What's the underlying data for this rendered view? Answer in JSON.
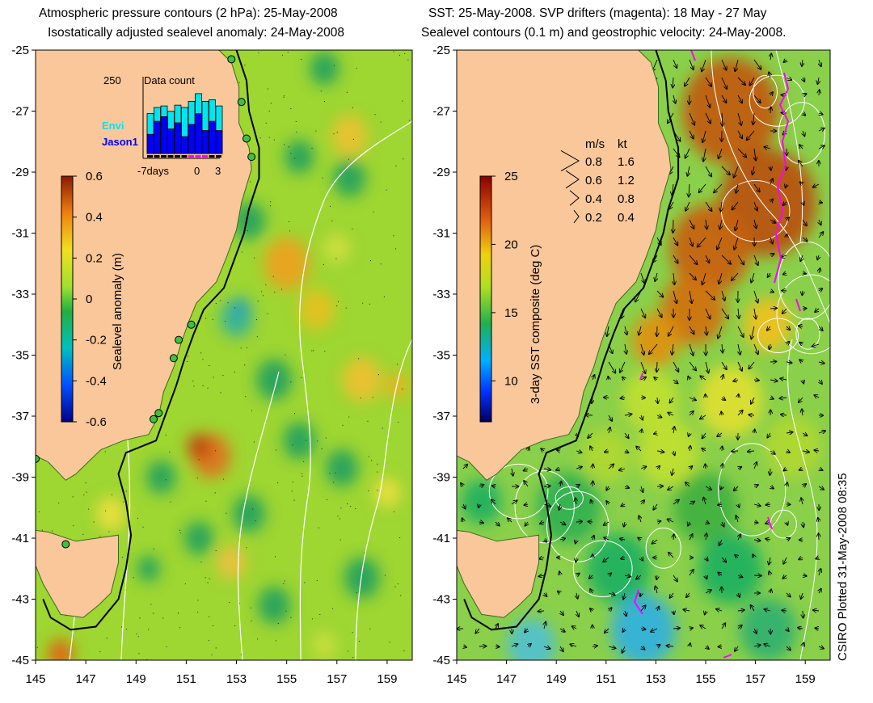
{
  "titles": {
    "left_line1": "Atmospheric pressure contours (2 hPa): 25-May-2008",
    "left_line2": "Isostatically adjusted sealevel anomaly: 24-May-2008",
    "right_line1": "SST: 25-May-2008. SVP drifters (magenta): 18 May - 27 May",
    "right_line2": "Sealevel contours (0.1 m) and geostrophic velocity: 24-May-2008."
  },
  "axes": {
    "lat_ticks": [
      "-25",
      "-27",
      "-29",
      "-31",
      "-33",
      "-35",
      "-37",
      "-39",
      "-41",
      "-43",
      "-45"
    ],
    "lon_ticks": [
      "145",
      "147",
      "149",
      "151",
      "153",
      "155",
      "157",
      "159"
    ],
    "lon_range": [
      145,
      160
    ],
    "lat_range": [
      -45,
      -25
    ]
  },
  "left_colorbar": {
    "label": "Sealevel anomaly (m)",
    "ticks": [
      "0.6",
      "0.4",
      "0.2",
      "0",
      "-0.2",
      "-0.4",
      "-0.6"
    ],
    "range": [
      -0.6,
      0.6
    ]
  },
  "right_colorbar": {
    "label": "3-day SST composite (deg C)",
    "ticks": [
      "25",
      "20",
      "15",
      "10"
    ],
    "range": [
      7,
      25
    ]
  },
  "data_count_inset": {
    "title": "Data count",
    "ymax_label": "250",
    "series": [
      "Envi",
      "Jason1"
    ],
    "series_colors": [
      "#00e5ee",
      "#0000ff"
    ],
    "x_labels": [
      "-7days",
      "0",
      "3"
    ],
    "envi_values": [
      0.52,
      0.6,
      0.62,
      0.55,
      0.63,
      0.6,
      0.68,
      0.78,
      0.68,
      0.7,
      0.62
    ],
    "jason_values": [
      0.25,
      0.42,
      0.48,
      0.32,
      0.4,
      0.22,
      0.38,
      0.52,
      0.3,
      0.42,
      0.3
    ]
  },
  "velocity_legend": {
    "header_ms": "m/s",
    "header_kt": "kt",
    "rows": [
      {
        "ms": "0.8",
        "kt": "1.6"
      },
      {
        "ms": "0.6",
        "kt": "1.2"
      },
      {
        "ms": "0.4",
        "kt": "0.8"
      },
      {
        "ms": "0.2",
        "kt": "0.4"
      }
    ]
  },
  "credit": "CSIRO Plotted 31-May-2008 08:35",
  "colors": {
    "land": "#fac79a",
    "ocean_base": "#9ed632",
    "coast_line": "#000000",
    "contour": "#ffffff",
    "drifter": "#ff00ff"
  }
}
